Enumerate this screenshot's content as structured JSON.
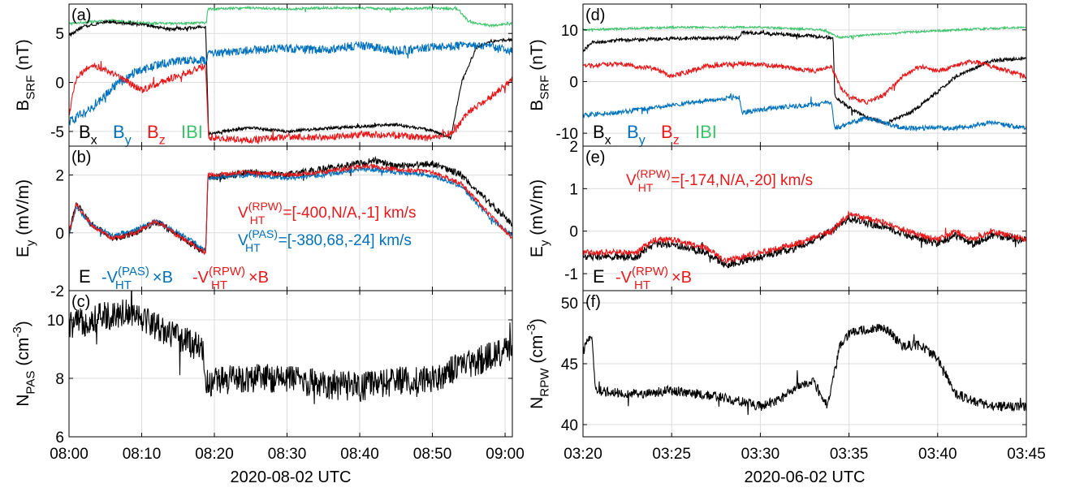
{
  "colors": {
    "bx": "#000000",
    "by": "#0072BD",
    "bz": "#E8191B",
    "bt": "#3CC46B",
    "axis": "#000000",
    "grid": "#DCDCDC"
  },
  "chart_data": [
    {
      "type": "line",
      "panel_label": "(a)",
      "ylabel_main": "B",
      "ylabel_sub": "SRF",
      "ylabel_units": " (nT)",
      "xlim": [
        0,
        61
      ],
      "ylim": [
        -6.5,
        8
      ],
      "xticks": [
        0,
        10,
        20,
        30,
        40,
        50,
        60
      ],
      "xticklabels": [
        "08:00",
        "08:10",
        "08:20",
        "08:30",
        "08:40",
        "08:50",
        "09:00"
      ],
      "yticks": [
        -5,
        0,
        5
      ],
      "yticklabels": [
        "-5",
        "0",
        "5"
      ],
      "series": [
        {
          "key": "bt",
          "color_key": "bt",
          "noise": 0.12,
          "x": [
            0,
            3,
            6,
            10,
            14,
            18.9,
            19.1,
            25,
            30,
            35,
            40,
            45,
            50,
            53.5,
            55,
            58,
            61
          ],
          "y": [
            6,
            6.2,
            6.3,
            6.1,
            6.0,
            6.1,
            7.5,
            7.6,
            7.5,
            7.6,
            7.6,
            7.5,
            7.6,
            7.5,
            6.2,
            5.8,
            6.0
          ]
        },
        {
          "key": "bx",
          "color_key": "bx",
          "noise": 0.15,
          "x": [
            0,
            2,
            5,
            10,
            14,
            18.8,
            19.2,
            25,
            30,
            35,
            40,
            45,
            50,
            52.5,
            54,
            56,
            58,
            61
          ],
          "y": [
            4.8,
            5.7,
            6.2,
            5.9,
            5.4,
            5.7,
            -5.2,
            -4.6,
            -5.0,
            -4.7,
            -4.5,
            -4.3,
            -4.9,
            -5.7,
            0,
            3.5,
            4.2,
            4.4
          ]
        },
        {
          "key": "by",
          "color_key": "by",
          "noise": 0.45,
          "x": [
            0,
            3,
            6,
            9,
            12,
            16,
            18.9,
            19.2,
            25,
            30,
            35,
            40,
            45,
            50,
            53,
            56,
            61
          ],
          "y": [
            -4,
            -2.8,
            -0.5,
            1.0,
            1.8,
            2.3,
            2.2,
            3.0,
            3.3,
            3.5,
            3.3,
            3.8,
            3.2,
            3.6,
            3.7,
            3.8,
            3.3
          ]
        },
        {
          "key": "bz",
          "color_key": "bz",
          "noise": 0.35,
          "x": [
            0,
            1,
            3,
            6,
            10,
            14,
            18.8,
            19.2,
            25,
            30,
            35,
            40,
            45,
            50,
            53,
            55,
            58,
            61
          ],
          "y": [
            -3.5,
            0.5,
            1.8,
            1.0,
            -0.8,
            0.4,
            1.7,
            -5.6,
            -5.9,
            -5.5,
            -5.6,
            -5.3,
            -5.4,
            -5.7,
            -5.0,
            -3.0,
            -1.5,
            0.3
          ]
        }
      ],
      "legend": [
        {
          "main": "B",
          "sub": "x",
          "color_key": "bx"
        },
        {
          "main": "B",
          "sub": "y",
          "color_key": "by"
        },
        {
          "main": "B",
          "sub": "z",
          "color_key": "bz"
        },
        {
          "main": "IBI",
          "sub": "",
          "color_key": "bt"
        }
      ]
    },
    {
      "type": "line",
      "panel_label": "(b)",
      "ylabel_main": "E",
      "ylabel_sub": "y",
      "ylabel_units": " (mV/m)",
      "xlim": [
        0,
        61
      ],
      "ylim": [
        -2,
        3
      ],
      "xticks": [
        0,
        10,
        20,
        30,
        40,
        50,
        60
      ],
      "xticklabels": [
        "08:00",
        "08:10",
        "08:20",
        "08:30",
        "08:40",
        "08:50",
        "09:00"
      ],
      "yticks": [
        -2,
        0,
        2
      ],
      "yticklabels": [
        "-2",
        "0",
        "2"
      ],
      "series": [
        {
          "key": "e",
          "color_key": "bx",
          "noise": 0.12,
          "x": [
            0,
            1,
            3,
            6,
            9,
            12,
            15,
            17,
            18.8,
            19.1,
            25,
            30,
            35,
            40,
            42,
            45,
            50,
            54,
            58,
            61
          ],
          "y": [
            0,
            1.0,
            0.3,
            -0.2,
            0.0,
            0.4,
            -0.1,
            -0.4,
            -0.7,
            1.9,
            2.1,
            2.0,
            2.2,
            2.4,
            2.5,
            2.3,
            2.4,
            2.0,
            1.0,
            0.3
          ]
        },
        {
          "key": "vpas",
          "color_key": "by",
          "noise": 0.08,
          "x": [
            0,
            1,
            3,
            6,
            9,
            12,
            15,
            17,
            18.8,
            19.1,
            25,
            30,
            35,
            40,
            42,
            45,
            50,
            54,
            58,
            61
          ],
          "y": [
            0,
            0.9,
            0.3,
            -0.1,
            0.1,
            0.4,
            0.0,
            -0.3,
            -0.6,
            1.9,
            2.0,
            1.9,
            2.0,
            2.2,
            2.2,
            2.1,
            2.0,
            1.6,
            0.5,
            -0.1
          ]
        },
        {
          "key": "vrpw",
          "color_key": "bz",
          "noise": 0.08,
          "x": [
            0,
            1,
            3,
            6,
            9,
            12,
            15,
            17,
            18.8,
            19.1,
            25,
            30,
            35,
            40,
            42,
            45,
            50,
            54,
            58,
            61
          ],
          "y": [
            0,
            1.0,
            0.3,
            -0.2,
            0.0,
            0.4,
            -0.1,
            -0.4,
            -0.7,
            2.0,
            2.1,
            2.0,
            2.1,
            2.3,
            2.3,
            2.2,
            2.1,
            1.7,
            0.6,
            -0.2
          ]
        }
      ],
      "annotations": [
        {
          "pre": "V",
          "sup": "(RPW)",
          "sub": "HT",
          "post": "=[-400,N/A,-1] km/s",
          "color_key": "bz",
          "anchor": "right-upper"
        },
        {
          "pre": "V",
          "sup": "(PAS)",
          "sub": "HT",
          "post": "=[-380,68,-24] km/s",
          "color_key": "by",
          "anchor": "right-lower"
        }
      ],
      "legend": [
        {
          "main": "E",
          "sub": "",
          "sup": "",
          "post": "",
          "color_key": "bx"
        },
        {
          "main": "-V",
          "sub": "HT",
          "sup": "(PAS)",
          "post": "×B",
          "color_key": "by"
        },
        {
          "main": "-V",
          "sub": "HT",
          "sup": "(RPW)",
          "post": "×B",
          "color_key": "bz"
        }
      ]
    },
    {
      "type": "line",
      "panel_label": "(c)",
      "ylabel_main": "N",
      "ylabel_sub": "PAS",
      "ylabel_units": " (cm",
      "ylabel_sup": "-3",
      "ylabel_close": ")",
      "xlim": [
        0,
        61
      ],
      "ylim": [
        6,
        11
      ],
      "xticks": [
        0,
        10,
        20,
        30,
        40,
        50,
        60
      ],
      "xticklabels": [
        "08:00",
        "08:10",
        "08:20",
        "08:30",
        "08:40",
        "08:50",
        "09:00"
      ],
      "yticks": [
        6,
        8,
        10
      ],
      "yticklabels": [
        "6",
        "8",
        "10"
      ],
      "xlabel": "2020-08-02 UTC",
      "series": [
        {
          "key": "n",
          "color_key": "bx",
          "noise": 0.5,
          "x": [
            0,
            3,
            6,
            9,
            12,
            15,
            18.5,
            18.8,
            20,
            25,
            30,
            35,
            40,
            45,
            50,
            55,
            61
          ],
          "y": [
            9.8,
            10.0,
            10.2,
            10.3,
            9.8,
            9.4,
            9.0,
            7.8,
            7.9,
            8.0,
            8.0,
            7.8,
            7.7,
            7.9,
            8.0,
            8.5,
            9.0
          ]
        }
      ]
    },
    {
      "type": "line",
      "panel_label": "(d)",
      "ylabel_main": "B",
      "ylabel_sub": "SRF",
      "ylabel_units": " (nT)",
      "xlim": [
        0,
        25
      ],
      "ylim": [
        -12.5,
        15
      ],
      "xticks": [
        0,
        5,
        10,
        15,
        20,
        25
      ],
      "xticklabels": [
        "03:20",
        "03:25",
        "03:30",
        "03:35",
        "03:40",
        "03:45"
      ],
      "yticks": [
        -10,
        0,
        10
      ],
      "yticklabels": [
        "-10",
        "0",
        "10"
      ],
      "series": [
        {
          "key": "bt",
          "color_key": "bt",
          "noise": 0.2,
          "x": [
            0,
            5,
            10,
            13.5,
            14.5,
            16,
            18,
            21,
            25
          ],
          "y": [
            10,
            10.5,
            10.5,
            10.0,
            8.5,
            9.0,
            9.5,
            10.0,
            10.5
          ]
        },
        {
          "key": "bx",
          "color_key": "bx",
          "noise": 0.35,
          "x": [
            0,
            0.5,
            2,
            5,
            8.8,
            9.0,
            12,
            14.1,
            14.2,
            15,
            16,
            17,
            18.5,
            20,
            21,
            23,
            25
          ],
          "y": [
            6,
            7.5,
            8.0,
            8.3,
            8.5,
            9.5,
            9.0,
            8.5,
            -3,
            -5,
            -7,
            -8,
            -6,
            -2,
            1,
            4,
            4.5
          ]
        },
        {
          "key": "by",
          "color_key": "by",
          "noise": 0.45,
          "x": [
            0,
            2,
            5,
            8.8,
            9.0,
            11,
            13,
            14,
            14.2,
            16,
            18,
            21,
            23,
            25
          ],
          "y": [
            -6.5,
            -6,
            -4.5,
            -3,
            -6,
            -5,
            -4.5,
            -4,
            -9,
            -7,
            -9,
            -9,
            -8,
            -9
          ]
        },
        {
          "key": "bz",
          "color_key": "bz",
          "noise": 0.45,
          "x": [
            0,
            2,
            4,
            5,
            7,
            9,
            11,
            13,
            14,
            14.5,
            15,
            16,
            17,
            18,
            19,
            20,
            22,
            23,
            25
          ],
          "y": [
            3,
            3.5,
            2.5,
            1,
            3,
            3.5,
            3,
            2,
            3,
            -1,
            -3,
            -4,
            -2.5,
            1,
            3,
            2,
            4,
            3,
            1
          ]
        }
      ],
      "legend": [
        {
          "main": "B",
          "sub": "x",
          "color_key": "bx"
        },
        {
          "main": "B",
          "sub": "y",
          "color_key": "by"
        },
        {
          "main": "B",
          "sub": "z",
          "color_key": "bz"
        },
        {
          "main": "IBI",
          "sub": "",
          "color_key": "bt"
        }
      ]
    },
    {
      "type": "line",
      "panel_label": "(e)",
      "ylabel_main": "E",
      "ylabel_sub": "y",
      "ylabel_units": " (mV/m)",
      "xlim": [
        0,
        25
      ],
      "ylim": [
        -1.4,
        2
      ],
      "xticks": [
        0,
        5,
        10,
        15,
        20,
        25
      ],
      "xticklabels": [
        "03:20",
        "03:25",
        "03:30",
        "03:35",
        "03:40",
        "03:45"
      ],
      "yticks": [
        -1,
        0,
        1,
        2
      ],
      "yticklabels": [
        "-1",
        "0",
        "1",
        "2"
      ],
      "series": [
        {
          "key": "e",
          "color_key": "bx",
          "noise": 0.09,
          "x": [
            0,
            3,
            4,
            5,
            6,
            7,
            8,
            10,
            12,
            14,
            15,
            17,
            19,
            20,
            21,
            22,
            23,
            25
          ],
          "y": [
            -0.6,
            -0.6,
            -0.3,
            -0.3,
            -0.4,
            -0.5,
            -0.8,
            -0.6,
            -0.4,
            0.0,
            0.3,
            0.1,
            -0.2,
            -0.3,
            -0.1,
            -0.3,
            -0.1,
            -0.2
          ]
        },
        {
          "key": "vrpw",
          "color_key": "bz",
          "noise": 0.07,
          "x": [
            0,
            3,
            4,
            5,
            6,
            7,
            8,
            10,
            12,
            14,
            15,
            17,
            19,
            20,
            21,
            22,
            23,
            25
          ],
          "y": [
            -0.5,
            -0.5,
            -0.2,
            -0.2,
            -0.3,
            -0.4,
            -0.7,
            -0.5,
            -0.3,
            0.0,
            0.4,
            0.2,
            -0.1,
            -0.2,
            0.0,
            -0.2,
            0.0,
            -0.2
          ]
        }
      ],
      "annotations": [
        {
          "pre": "V",
          "sup": "(RPW)",
          "sub": "HT",
          "post": "=[-174,N/A,-20] km/s",
          "color_key": "bz",
          "anchor": "left-upper"
        }
      ],
      "legend": [
        {
          "main": "E",
          "sub": "",
          "sup": "",
          "post": "",
          "color_key": "bx"
        },
        {
          "main": "-V",
          "sub": "HT",
          "sup": "(RPW)",
          "post": "×B",
          "color_key": "bz"
        }
      ]
    },
    {
      "type": "line",
      "panel_label": "(f)",
      "ylabel_main": "N",
      "ylabel_sub": "RPW",
      "ylabel_units": " (cm",
      "ylabel_sup": "-3",
      "ylabel_close": ")",
      "xlim": [
        0,
        25
      ],
      "ylim": [
        39,
        51
      ],
      "xticks": [
        0,
        5,
        10,
        15,
        20,
        25
      ],
      "xticklabels": [
        "03:20",
        "03:25",
        "03:30",
        "03:35",
        "03:40",
        "03:45"
      ],
      "yticks": [
        40,
        45,
        50
      ],
      "yticklabels": [
        "40",
        "45",
        "50"
      ],
      "xlabel": "2020-06-02 UTC",
      "series": [
        {
          "key": "n",
          "color_key": "bx",
          "noise": 0.4,
          "x": [
            0,
            0.5,
            0.7,
            3,
            5,
            8,
            10,
            11,
            12,
            13,
            13.8,
            14.5,
            15,
            16,
            17,
            18,
            19,
            20,
            21,
            22,
            23,
            25
          ],
          "y": [
            46,
            47.5,
            42.8,
            42.5,
            42.8,
            42.2,
            41.5,
            42,
            43,
            43.5,
            41.5,
            46.5,
            47.5,
            47.8,
            48,
            46.5,
            46.5,
            45.5,
            42.5,
            42,
            41.5,
            41.5
          ]
        }
      ]
    }
  ]
}
